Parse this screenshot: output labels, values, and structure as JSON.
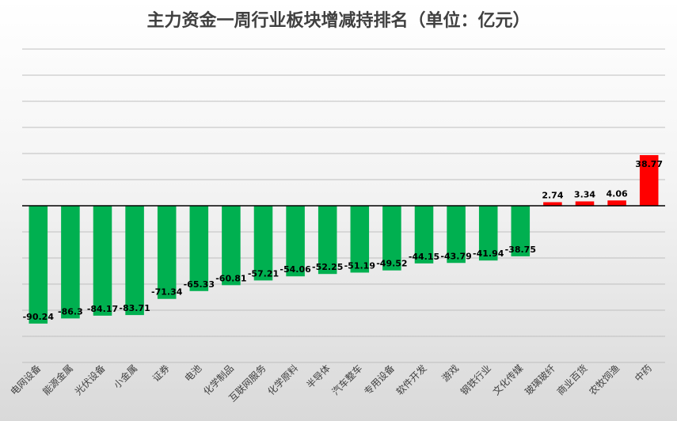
{
  "chart_data": {
    "type": "bar",
    "title": "主力资金一周行业板块增减持排名（单位：亿元）",
    "xlabel": "",
    "ylabel": "",
    "ylim": [
      -120,
      120
    ],
    "grid": true,
    "legend": "none",
    "categories": [
      "电网设备",
      "能源金属",
      "光伏设备",
      "小金属",
      "证券",
      "电池",
      "化学制品",
      "互联网服务",
      "化学原料",
      "半导体",
      "汽车整车",
      "专用设备",
      "软件开发",
      "游戏",
      "钢铁行业",
      "文化传媒",
      "玻璃玻纤",
      "商业百货",
      "农牧饲渔",
      "中药"
    ],
    "values": [
      -90.24,
      -86.3,
      -84.17,
      -83.71,
      -71.34,
      -65.33,
      -60.81,
      -57.21,
      -54.06,
      -52.25,
      -51.19,
      -49.52,
      -44.15,
      -43.79,
      -41.94,
      -38.75,
      2.74,
      3.34,
      4.06,
      38.77
    ],
    "colors": {
      "negative": "#00b050",
      "positive": "#ff0000"
    }
  }
}
